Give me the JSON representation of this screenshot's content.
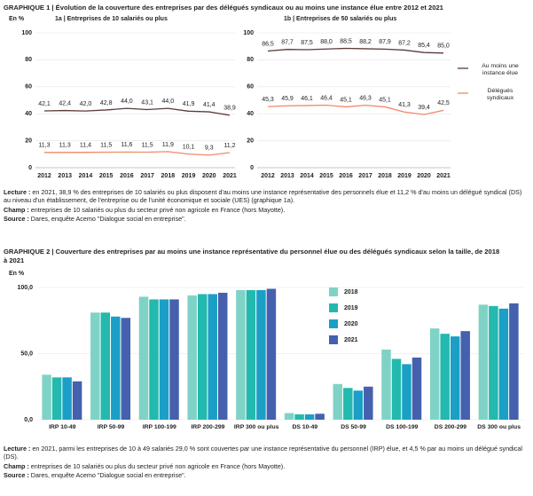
{
  "graphique_1": {
    "title": "GRAPHIQUE 1 | Évolution de la couverture des entreprises par des délégués syndicaux ou au moins une instance élue entre 2012 et 2021",
    "lecture_label": "Lecture :",
    "lecture": "en 2021, 38,9 % des entreprises de 10 salariés ou plus disposent d'au moins une instance représentative des personnels élue et 11,2 % d'au moins un délégué syndical (DS) au niveau d'un établissement, de l'entreprise ou de l'unité économique et sociale (UES) (graphique 1a).",
    "champ_label": "Champ :",
    "champ": "entreprises de 10 salariés ou plus du secteur privé non agricole en France (hors Mayotte).",
    "source_label": "Source :",
    "source": "Dares, enquête Acemo \"Dialogue social en entreprise\"."
  },
  "graphique_2": {
    "title": "GRAPHIQUE 2 | Couverture des entreprises par au moins une instance représentative du personnel élue ou des délégués syndicaux selon la taille, de 2018 à 2021",
    "lecture_label": "Lecture :",
    "lecture": "en 2021, parmi les entreprises de 10 à 49 salariés 29,0 % sont couvertes par une instance représentative du personnel (IRP) élue, et 4,5 % par au moins un délégué syndical (DS).",
    "champ_label": "Champ :",
    "champ": "entreprises de 10 salariés ou plus du secteur privé non agricole en France (hors Mayotte).",
    "source_label": "Source :",
    "source": "Dares, enquête Acemo \"Dialogue social en entreprise\"."
  },
  "chart_data": [
    {
      "type": "line",
      "title": "1a | Entreprises de 10 salariés ou plus",
      "y_label": "En %",
      "x": [
        2012,
        2013,
        2014,
        2015,
        2016,
        2017,
        2018,
        2019,
        2020,
        2021
      ],
      "ylim": [
        0,
        100
      ],
      "yticks": [
        0,
        20,
        40,
        60,
        80,
        100
      ],
      "grid": true,
      "series": [
        {
          "color": "#5b3a3a",
          "values": [
            42.1,
            42.4,
            42.0,
            42.8,
            44.0,
            43.1,
            44.0,
            41.9,
            41.4,
            38.9
          ],
          "value_labels": [
            "42,1",
            "42,4",
            "42,0",
            "42,8",
            "44,0",
            "43,1",
            "44,0",
            "41,9",
            "41,4",
            "38,9"
          ]
        },
        {
          "color": "#f2876a",
          "values": [
            11.3,
            11.3,
            11.4,
            11.5,
            11.6,
            11.5,
            11.9,
            10.1,
            9.3,
            11.2
          ],
          "value_labels": [
            "11,3",
            "11,3",
            "11,4",
            "11,5",
            "11,6",
            "11,5",
            "11,9",
            "10,1",
            "9,3",
            "11,2"
          ]
        }
      ]
    },
    {
      "type": "line",
      "title": "1b | Entreprises de 50 salariés ou plus",
      "legend": "right",
      "x": [
        2012,
        2013,
        2014,
        2015,
        2016,
        2017,
        2018,
        2019,
        2020,
        2021
      ],
      "ylim": [
        0,
        100
      ],
      "yticks": [
        0,
        20,
        40,
        60,
        80,
        100
      ],
      "grid": true,
      "series": [
        {
          "name": "Au moins une instance élue",
          "color": "#5b3a3a",
          "values": [
            86.5,
            87.7,
            87.5,
            88.0,
            88.5,
            88.2,
            87.9,
            87.2,
            85.4,
            85.0
          ],
          "value_labels": [
            "86,5",
            "87,7",
            "87,5",
            "88,0",
            "88,5",
            "88,2",
            "87,9",
            "87,2",
            "85,4",
            "85,0"
          ]
        },
        {
          "name": "Délégués syndicaux",
          "color": "#f2876a",
          "values": [
            45.3,
            45.9,
            46.1,
            46.4,
            45.1,
            46.3,
            45.1,
            41.3,
            39.4,
            42.5
          ],
          "value_labels": [
            "45,3",
            "45,9",
            "46,1",
            "46,4",
            "45,1",
            "46,3",
            "45,1",
            "41,3",
            "39,4",
            "42,5"
          ]
        }
      ]
    },
    {
      "type": "bar",
      "y_label": "En %",
      "legend": "inside",
      "categories": [
        "IRP 10-49",
        "IRP 50-99",
        "IRP 100-199",
        "IRP 200-299",
        "IRP 300 ou plus",
        "DS 10-49",
        "DS 50-99",
        "DS 100-199",
        "DS 200-299",
        "DS 300 ou plus"
      ],
      "ylim": [
        0,
        100
      ],
      "yticks": [
        {
          "value": 0,
          "label": "0,0"
        },
        {
          "value": 50,
          "label": "50,0"
        },
        {
          "value": 100,
          "label": "100,0"
        }
      ],
      "grid": true,
      "series": [
        {
          "name": "2018",
          "color": "#7fd3c6",
          "values": [
            34,
            81,
            93,
            94,
            98,
            5,
            27,
            53,
            69,
            87
          ]
        },
        {
          "name": "2019",
          "color": "#24b9ae",
          "values": [
            32,
            81,
            91,
            95,
            98,
            4,
            24,
            46,
            65,
            86
          ]
        },
        {
          "name": "2020",
          "color": "#1b9fc6",
          "values": [
            32,
            78,
            91,
            95,
            98,
            4,
            22,
            42,
            63,
            84
          ]
        },
        {
          "name": "2021",
          "color": "#4561ad",
          "values": [
            29,
            77,
            91,
            96,
            99,
            4.5,
            25,
            47,
            67,
            88
          ]
        }
      ]
    }
  ]
}
